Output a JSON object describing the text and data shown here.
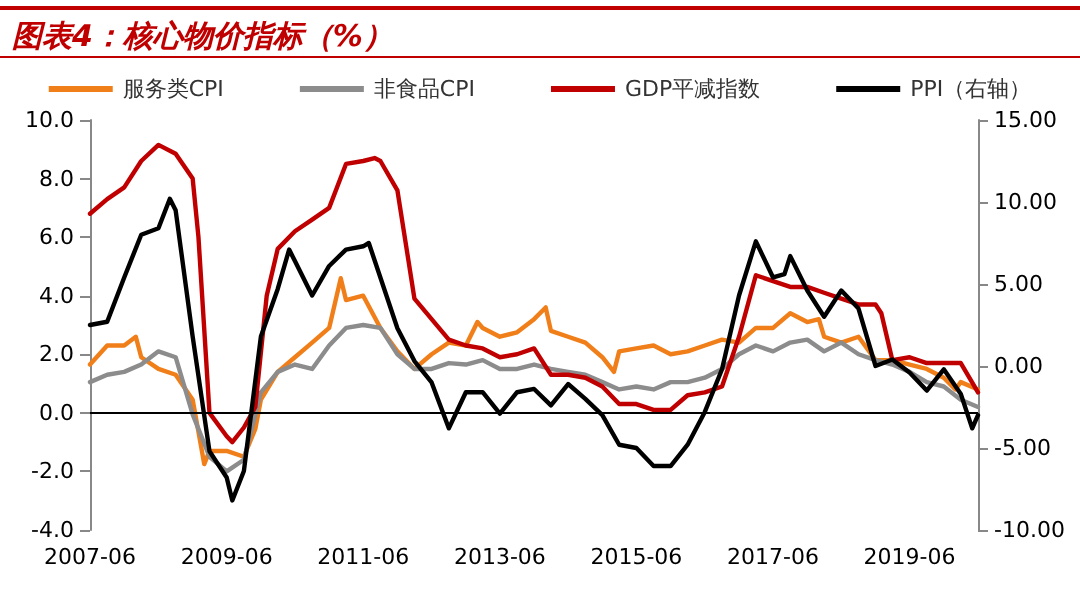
{
  "chart_data": {
    "type": "line",
    "title": "图表4：核心物价指标（%）",
    "xlim": [
      "2007-06",
      "2020-06"
    ],
    "xticks": [
      "2007-06",
      "2009-06",
      "2011-06",
      "2013-06",
      "2015-06",
      "2017-06",
      "2019-06"
    ],
    "ylim": [
      -4,
      10
    ],
    "yticks": [
      {
        "value": -4,
        "label": "-4.0"
      },
      {
        "value": -2,
        "label": "-2.0"
      },
      {
        "value": 0,
        "label": "0.0"
      },
      {
        "value": 2,
        "label": "2.0"
      },
      {
        "value": 4,
        "label": "4.0"
      },
      {
        "value": 6,
        "label": "6.0"
      },
      {
        "value": 8,
        "label": "8.0"
      },
      {
        "value": 10,
        "label": "10.0"
      }
    ],
    "y2lim": [
      -10,
      15
    ],
    "y2ticks": [
      {
        "value": -10,
        "label": "-10.00"
      },
      {
        "value": -5,
        "label": "-5.00"
      },
      {
        "value": 0,
        "label": "0.00"
      },
      {
        "value": 5,
        "label": "5.00"
      },
      {
        "value": 10,
        "label": "10.00"
      },
      {
        "value": 15,
        "label": "15.00"
      }
    ],
    "legend": "top",
    "grid": false,
    "marker": "none",
    "line_style": "solid",
    "ref_lines": [
      {
        "axis": "y",
        "value": 0,
        "color": "#000000"
      }
    ],
    "series": [
      {
        "name": "服务类CPI",
        "color": "#f07f1a",
        "x": [
          "2007-06",
          "2007-09",
          "2007-12",
          "2008-02",
          "2008-03",
          "2008-06",
          "2008-09",
          "2008-12",
          "2009-02",
          "2009-03",
          "2009-06",
          "2009-09",
          "2009-11",
          "2009-12",
          "2010-03",
          "2010-06",
          "2010-09",
          "2010-12",
          "2011-02",
          "2011-03",
          "2011-06",
          "2011-09",
          "2011-12",
          "2012-03",
          "2012-06",
          "2012-09",
          "2012-12",
          "2013-02",
          "2013-03",
          "2013-06",
          "2013-09",
          "2013-12",
          "2014-02",
          "2014-03",
          "2014-06",
          "2014-09",
          "2014-12",
          "2015-02",
          "2015-03",
          "2015-06",
          "2015-09",
          "2015-12",
          "2016-03",
          "2016-06",
          "2016-09",
          "2016-12",
          "2017-03",
          "2017-06",
          "2017-09",
          "2017-12",
          "2018-02",
          "2018-03",
          "2018-06",
          "2018-09",
          "2018-12",
          "2019-03",
          "2019-06",
          "2019-09",
          "2019-12",
          "2020-02",
          "2020-03",
          "2020-06"
        ],
        "values": [
          1.65,
          2.3,
          2.3,
          2.6,
          1.9,
          1.5,
          1.3,
          0.45,
          -1.75,
          -1.3,
          -1.3,
          -1.5,
          -0.55,
          0.45,
          1.4,
          1.9,
          2.4,
          2.9,
          4.6,
          3.85,
          4.0,
          2.9,
          2.1,
          1.5,
          2.0,
          2.4,
          2.3,
          3.1,
          2.9,
          2.6,
          2.75,
          3.2,
          3.6,
          2.8,
          2.6,
          2.4,
          1.9,
          1.4,
          2.1,
          2.2,
          2.3,
          2.0,
          2.1,
          2.3,
          2.5,
          2.4,
          2.9,
          2.9,
          3.4,
          3.1,
          3.2,
          2.6,
          2.4,
          2.6,
          1.8,
          1.8,
          1.65,
          1.5,
          1.2,
          0.8,
          1.05,
          0.8
        ]
      },
      {
        "name": "非食品CPI",
        "color": "#8c8c8c",
        "x": [
          "2007-06",
          "2007-09",
          "2007-12",
          "2008-03",
          "2008-06",
          "2008-09",
          "2008-12",
          "2009-03",
          "2009-06",
          "2009-09",
          "2009-12",
          "2010-03",
          "2010-06",
          "2010-09",
          "2010-12",
          "2011-03",
          "2011-06",
          "2011-09",
          "2011-12",
          "2012-03",
          "2012-06",
          "2012-09",
          "2012-12",
          "2013-03",
          "2013-06",
          "2013-09",
          "2013-12",
          "2014-03",
          "2014-06",
          "2014-09",
          "2014-12",
          "2015-03",
          "2015-06",
          "2015-09",
          "2015-12",
          "2016-03",
          "2016-06",
          "2016-09",
          "2016-12",
          "2017-03",
          "2017-06",
          "2017-09",
          "2017-12",
          "2018-03",
          "2018-06",
          "2018-09",
          "2018-12",
          "2019-03",
          "2019-06",
          "2019-09",
          "2019-12",
          "2020-03",
          "2020-06"
        ],
        "values": [
          1.05,
          1.3,
          1.4,
          1.65,
          2.1,
          1.9,
          -0.05,
          -1.5,
          -2.0,
          -1.6,
          0.7,
          1.4,
          1.65,
          1.5,
          2.3,
          2.9,
          3.0,
          2.9,
          2.0,
          1.5,
          1.5,
          1.7,
          1.65,
          1.8,
          1.5,
          1.5,
          1.65,
          1.5,
          1.4,
          1.3,
          1.05,
          0.8,
          0.9,
          0.8,
          1.05,
          1.05,
          1.2,
          1.5,
          2.0,
          2.3,
          2.1,
          2.4,
          2.5,
          2.1,
          2.4,
          2.0,
          1.8,
          1.65,
          1.4,
          1.05,
          0.9,
          0.45,
          0.2
        ]
      },
      {
        "name": "GDP平减指数",
        "color": "#c00000",
        "x": [
          "2007-06",
          "2007-09",
          "2007-12",
          "2008-03",
          "2008-06",
          "2008-09",
          "2008-12",
          "2009-01",
          "2009-03",
          "2009-06",
          "2009-07",
          "2009-09",
          "2009-11",
          "2010-01",
          "2010-03",
          "2010-06",
          "2010-09",
          "2010-12",
          "2011-03",
          "2011-06",
          "2011-08",
          "2011-09",
          "2011-12",
          "2012-03",
          "2012-06",
          "2012-09",
          "2012-12",
          "2013-03",
          "2013-06",
          "2013-09",
          "2013-12",
          "2014-03",
          "2014-06",
          "2014-09",
          "2014-12",
          "2015-03",
          "2015-06",
          "2015-09",
          "2015-12",
          "2016-03",
          "2016-06",
          "2016-09",
          "2016-12",
          "2017-03",
          "2017-06",
          "2017-09",
          "2017-12",
          "2018-03",
          "2018-06",
          "2018-09",
          "2018-12",
          "2019-01",
          "2019-03",
          "2019-06",
          "2019-09",
          "2019-12",
          "2020-03",
          "2020-06"
        ],
        "values": [
          6.8,
          7.3,
          7.7,
          8.6,
          9.15,
          8.85,
          8.0,
          6.0,
          0.0,
          -0.8,
          -1.0,
          -0.5,
          0.2,
          4.0,
          5.6,
          6.2,
          6.6,
          7.0,
          8.5,
          8.6,
          8.7,
          8.6,
          7.6,
          3.9,
          3.2,
          2.5,
          2.3,
          2.2,
          1.9,
          2.0,
          2.2,
          1.3,
          1.3,
          1.2,
          0.9,
          0.3,
          0.3,
          0.1,
          0.1,
          0.6,
          0.7,
          0.9,
          2.6,
          4.7,
          4.5,
          4.3,
          4.3,
          4.1,
          3.9,
          3.7,
          3.7,
          3.4,
          1.8,
          1.9,
          1.7,
          1.7,
          1.7,
          0.7
        ]
      },
      {
        "name": "PPI（右轴）",
        "color": "#000000",
        "axis": "y2",
        "x": [
          "2007-06",
          "2007-09",
          "2007-12",
          "2008-03",
          "2008-06",
          "2008-08",
          "2008-09",
          "2008-12",
          "2009-03",
          "2009-06",
          "2009-07",
          "2009-09",
          "2009-12",
          "2010-03",
          "2010-05",
          "2010-06",
          "2010-09",
          "2010-12",
          "2011-03",
          "2011-06",
          "2011-07",
          "2011-12",
          "2012-03",
          "2012-06",
          "2012-09",
          "2012-12",
          "2013-03",
          "2013-06",
          "2013-09",
          "2013-12",
          "2014-03",
          "2014-06",
          "2014-09",
          "2014-12",
          "2015-03",
          "2015-06",
          "2015-09",
          "2015-12",
          "2016-03",
          "2016-06",
          "2016-09",
          "2016-12",
          "2017-03",
          "2017-06",
          "2017-08",
          "2017-09",
          "2017-12",
          "2018-03",
          "2018-06",
          "2018-09",
          "2018-12",
          "2019-03",
          "2019-06",
          "2019-09",
          "2019-12",
          "2020-03",
          "2020-05",
          "2020-06"
        ],
        "values": [
          2.5,
          2.7,
          5.4,
          8.0,
          8.4,
          10.2,
          9.5,
          1.8,
          -5.2,
          -6.8,
          -8.2,
          -6.4,
          1.8,
          4.7,
          7.1,
          6.4,
          4.3,
          6.1,
          7.1,
          7.3,
          7.5,
          2.3,
          0.3,
          -1.0,
          -3.8,
          -1.6,
          -1.6,
          -2.9,
          -1.6,
          -1.4,
          -2.4,
          -1.1,
          -2.0,
          -3.0,
          -4.8,
          -5.0,
          -6.1,
          -6.1,
          -4.8,
          -2.8,
          -0.2,
          4.3,
          7.6,
          5.4,
          5.6,
          6.7,
          4.6,
          3.0,
          4.6,
          3.5,
          0.0,
          0.4,
          -0.4,
          -1.5,
          -0.2,
          -1.7,
          -3.8,
          -3.0
        ]
      }
    ]
  }
}
